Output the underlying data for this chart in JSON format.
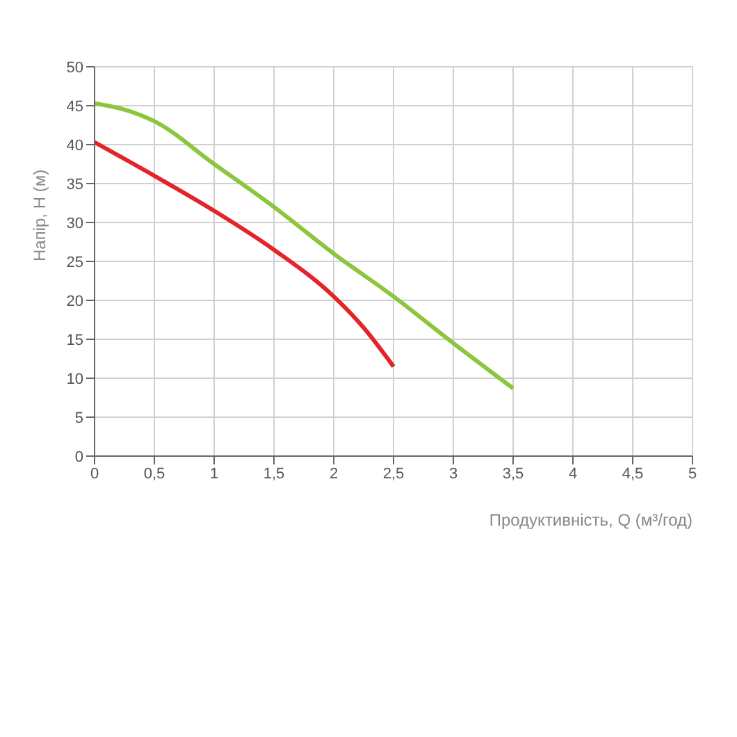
{
  "chart_data": {
    "type": "line",
    "xlabel": "Продуктивність, Q (м³/год)",
    "ylabel": "Напір, Н (м)",
    "xlim": [
      0,
      5
    ],
    "xticks": [
      0,
      {
        "value": 0.5,
        "label": "0,5"
      },
      1,
      {
        "value": 1.5,
        "label": "1,5"
      },
      2,
      {
        "value": 2.5,
        "label": "2,5"
      },
      3,
      {
        "value": 3.5,
        "label": "3,5"
      },
      4,
      {
        "value": 4.5,
        "label": "4,5"
      },
      5
    ],
    "ylim": [
      0,
      50
    ],
    "yticks": [
      0,
      5,
      10,
      15,
      20,
      25,
      30,
      35,
      40,
      45,
      50
    ],
    "grid": true,
    "marker": "none",
    "line_style": "solid",
    "series": [
      {
        "color": "#e3242b",
        "x": [
          0,
          0.5,
          1,
          1.5,
          2,
          2.25,
          2.5
        ],
        "values": [
          40.3,
          36,
          31.5,
          26.5,
          20.5,
          16.5,
          11.5
        ]
      },
      {
        "color": "#8cc63f",
        "x": [
          0,
          0.25,
          0.5,
          1,
          1.5,
          2,
          2.5,
          3,
          3.5
        ],
        "values": [
          45.3,
          44.5,
          43,
          37.5,
          32,
          26,
          20.5,
          14.5,
          8.7
        ]
      }
    ]
  }
}
